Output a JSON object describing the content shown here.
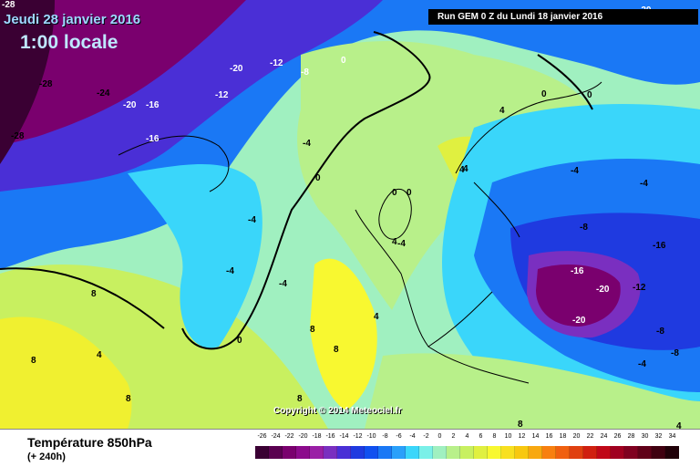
{
  "header": {
    "date": "Jeudi 28 janvier 2016",
    "time": "1:00 locale",
    "run_info": "Run GEM 0 Z du Lundi 18 janvier 2016",
    "corner_top_left": "-28",
    "corner_top_right": "-20"
  },
  "copyright": "Copyright © 2014 Meteociel.fr",
  "footer": {
    "parameter": "Température 850hPa",
    "forecast_hour": "(+ 240h)"
  },
  "legend": {
    "values": [
      "-26",
      "-24",
      "-22",
      "-20",
      "-18",
      "-16",
      "-14",
      "-12",
      "-10",
      "-8",
      "-6",
      "-4",
      "-2",
      "0",
      "2",
      "4",
      "6",
      "8",
      "10",
      "12",
      "14",
      "16",
      "18",
      "20",
      "22",
      "24",
      "26",
      "28",
      "30",
      "32",
      "34"
    ],
    "colors": [
      "#3a0033",
      "#5a0050",
      "#7a006e",
      "#8c0a8c",
      "#9a1fa6",
      "#7a2fc0",
      "#4a2fd6",
      "#1f3ae0",
      "#1050f0",
      "#1a78f5",
      "#2aa0fa",
      "#3ad6fa",
      "#7af0e8",
      "#a0f0c0",
      "#b8f08a",
      "#c8f060",
      "#e0f040",
      "#f8f830",
      "#f8e020",
      "#f8c810",
      "#f8a810",
      "#f88010",
      "#f06010",
      "#e04010",
      "#d02010",
      "#c00818",
      "#a00020",
      "#800020",
      "#600018",
      "#400010",
      "#200008"
    ]
  },
  "map": {
    "isotherm_labels": [
      "-28",
      "-24",
      "-20",
      "-20",
      "-16",
      "-16",
      "-12",
      "-12",
      "-8",
      "-28",
      "0",
      "0",
      "4",
      "4",
      "0",
      "-4",
      "-4",
      "-4",
      "-4",
      "0",
      "-4",
      "0",
      "0",
      "4",
      "4",
      "8",
      "8",
      "4",
      "8",
      "8",
      "8",
      "0",
      "8",
      "-4",
      "-8",
      "-16",
      "-16",
      "-20",
      "-12",
      "-20",
      "-8",
      "-4",
      "-4",
      "-8",
      "4",
      "8",
      "4",
      "-20"
    ]
  }
}
